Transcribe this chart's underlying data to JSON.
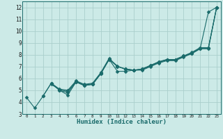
{
  "xlabel": "Humidex (Indice chaleur)",
  "background_color": "#cceae7",
  "grid_color": "#aacfcc",
  "line_color": "#1a6b6b",
  "marker": "D",
  "xlim": [
    -0.5,
    23.5
  ],
  "ylim": [
    3,
    12.5
  ],
  "xticks": [
    0,
    1,
    2,
    3,
    4,
    5,
    6,
    7,
    8,
    9,
    10,
    11,
    12,
    13,
    14,
    15,
    16,
    17,
    18,
    19,
    20,
    21,
    22,
    23
  ],
  "yticks": [
    3,
    4,
    5,
    6,
    7,
    8,
    9,
    10,
    11,
    12
  ],
  "series1": [
    [
      0,
      4.4
    ],
    [
      1,
      3.5
    ],
    [
      2,
      4.5
    ],
    [
      3,
      5.6
    ],
    [
      4,
      5.0
    ],
    [
      5,
      4.6
    ],
    [
      6,
      5.7
    ],
    [
      7,
      5.4
    ],
    [
      8,
      5.5
    ],
    [
      9,
      6.4
    ],
    [
      10,
      7.6
    ],
    [
      11,
      6.6
    ],
    [
      12,
      6.6
    ],
    [
      13,
      6.7
    ],
    [
      14,
      6.7
    ],
    [
      15,
      7.0
    ],
    [
      16,
      7.3
    ],
    [
      17,
      7.5
    ],
    [
      18,
      7.5
    ],
    [
      19,
      7.8
    ],
    [
      20,
      8.1
    ],
    [
      21,
      8.5
    ],
    [
      22,
      11.6
    ],
    [
      23,
      12.0
    ]
  ],
  "series2": [
    [
      2,
      4.5
    ],
    [
      3,
      5.6
    ],
    [
      4,
      5.1
    ],
    [
      5,
      5.0
    ],
    [
      6,
      5.8
    ],
    [
      7,
      5.5
    ],
    [
      8,
      5.6
    ],
    [
      9,
      6.5
    ],
    [
      10,
      7.7
    ],
    [
      11,
      7.0
    ],
    [
      12,
      6.8
    ],
    [
      13,
      6.7
    ],
    [
      14,
      6.8
    ],
    [
      15,
      7.1
    ],
    [
      16,
      7.4
    ],
    [
      17,
      7.6
    ],
    [
      18,
      7.6
    ],
    [
      19,
      7.9
    ],
    [
      20,
      8.2
    ],
    [
      21,
      8.6
    ],
    [
      22,
      8.6
    ],
    [
      23,
      12.0
    ]
  ],
  "series3": [
    [
      3,
      5.6
    ],
    [
      4,
      5.0
    ],
    [
      5,
      4.8
    ],
    [
      6,
      5.7
    ],
    [
      7,
      5.4
    ],
    [
      8,
      5.5
    ],
    [
      9,
      6.4
    ],
    [
      10,
      7.6
    ],
    [
      11,
      7.0
    ],
    [
      12,
      6.8
    ],
    [
      13,
      6.7
    ],
    [
      14,
      6.8
    ],
    [
      15,
      7.1
    ],
    [
      16,
      7.4
    ],
    [
      17,
      7.6
    ],
    [
      18,
      7.6
    ],
    [
      19,
      7.9
    ],
    [
      20,
      8.1
    ],
    [
      21,
      8.5
    ],
    [
      22,
      8.5
    ],
    [
      23,
      12.0
    ]
  ],
  "series4": [
    [
      3,
      5.5
    ],
    [
      4,
      5.05
    ],
    [
      5,
      4.9
    ],
    [
      6,
      5.75
    ],
    [
      7,
      5.45
    ],
    [
      8,
      5.55
    ],
    [
      9,
      6.45
    ],
    [
      10,
      7.65
    ],
    [
      11,
      7.05
    ],
    [
      12,
      6.75
    ],
    [
      13,
      6.7
    ],
    [
      14,
      6.75
    ],
    [
      15,
      7.05
    ],
    [
      16,
      7.35
    ],
    [
      17,
      7.55
    ],
    [
      18,
      7.55
    ],
    [
      19,
      7.85
    ],
    [
      20,
      8.15
    ],
    [
      21,
      8.55
    ],
    [
      22,
      8.55
    ],
    [
      23,
      12.0
    ]
  ]
}
